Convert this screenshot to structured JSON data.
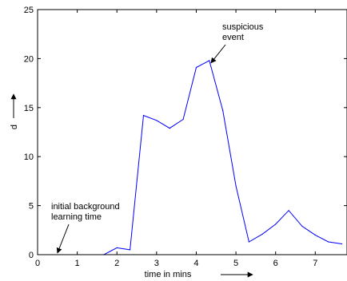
{
  "chart_data": {
    "type": "line",
    "title": "",
    "xlabel": "time in mins",
    "ylabel": "d",
    "xlim": [
      0,
      7.8
    ],
    "ylim": [
      0,
      25
    ],
    "xticks": [
      0,
      1,
      2,
      3,
      4,
      5,
      6,
      7
    ],
    "yticks": [
      0,
      5,
      10,
      15,
      20,
      25
    ],
    "grid": false,
    "series": [
      {
        "color": "#0000ff",
        "x": [
          0,
          1.67,
          2.0,
          2.33,
          2.67,
          3.0,
          3.33,
          3.67,
          4.0,
          4.33,
          4.67,
          5.0,
          5.33,
          5.67,
          6.0,
          6.33,
          6.67,
          7.0,
          7.33,
          7.67
        ],
        "y": [
          0,
          0,
          0.7,
          0.5,
          14.2,
          13.7,
          12.9,
          13.8,
          19.1,
          19.8,
          14.7,
          7.0,
          1.3,
          2.1,
          3.1,
          4.5,
          2.9,
          2.0,
          1.3,
          1.1
        ]
      }
    ],
    "annotations": [
      {
        "lines": [
          "suspicious",
          "event"
        ],
        "point": [
          4.33,
          19.8
        ]
      },
      {
        "lines": [
          "initial background",
          "learning time"
        ],
        "point": [
          0.5,
          0
        ]
      }
    ]
  }
}
